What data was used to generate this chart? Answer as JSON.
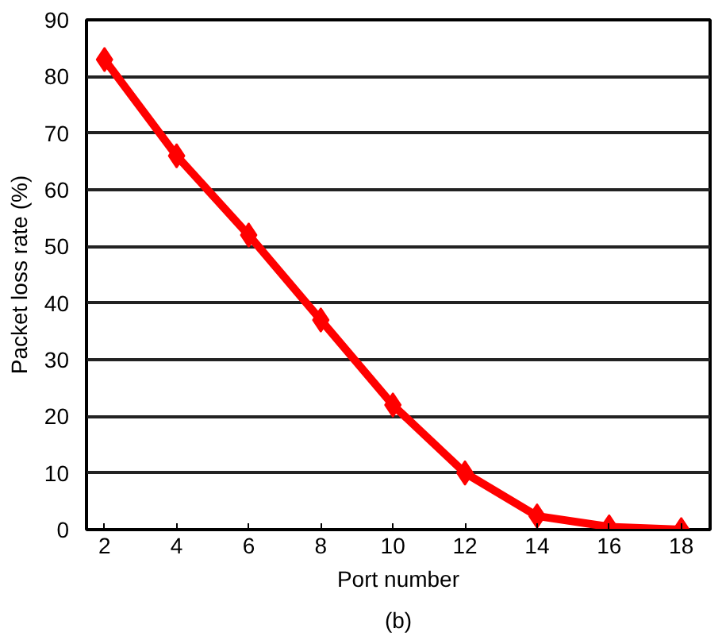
{
  "chart_data": {
    "type": "line",
    "xlabel": "Port number",
    "ylabel": "Packet loss rate (%)",
    "annotations": [
      "(b)"
    ],
    "x": [
      2,
      4,
      6,
      8,
      10,
      12,
      14,
      16,
      18
    ],
    "series": [
      {
        "color": "#ff0000",
        "values": [
          83,
          66,
          52,
          37,
          22,
          10,
          2.4,
          0.5,
          0
        ]
      }
    ],
    "xlim": [
      1.5,
      18.8
    ],
    "xticks": [
      2,
      4,
      6,
      8,
      10,
      12,
      14,
      16,
      18
    ],
    "ylim": [
      0,
      90
    ],
    "yticks": [
      0,
      10,
      20,
      30,
      40,
      50,
      60,
      70,
      80,
      90
    ],
    "grid": "y",
    "marker": "diamond",
    "line_style": "solid"
  }
}
